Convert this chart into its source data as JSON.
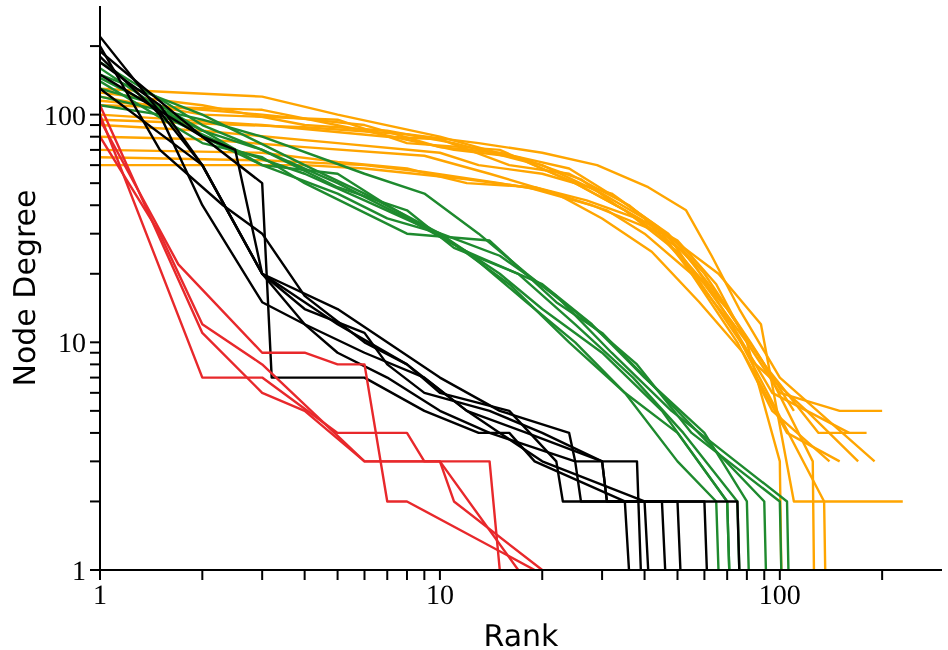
{
  "chart_data": {
    "type": "line",
    "xlabel": "Rank",
    "ylabel": "Node Degree",
    "log": "xy",
    "xlim": [
      1,
      300
    ],
    "ylim": [
      1,
      300
    ],
    "xticks": [
      1,
      {
        "value": 2,
        "label": null
      },
      {
        "value": 3,
        "label": null
      },
      {
        "value": 4,
        "label": null
      },
      {
        "value": 5,
        "label": null
      },
      {
        "value": 6,
        "label": null
      },
      {
        "value": 7,
        "label": null
      },
      {
        "value": 8,
        "label": null
      },
      {
        "value": 9,
        "label": null
      },
      10,
      {
        "value": 20,
        "label": null
      },
      {
        "value": 30,
        "label": null
      },
      {
        "value": 40,
        "label": null
      },
      {
        "value": 50,
        "label": null
      },
      {
        "value": 60,
        "label": null
      },
      {
        "value": 70,
        "label": null
      },
      {
        "value": 80,
        "label": null
      },
      {
        "value": 90,
        "label": null
      },
      100,
      {
        "value": 200,
        "label": null
      }
    ],
    "yticks": [
      1,
      {
        "value": 2,
        "label": null
      },
      {
        "value": 3,
        "label": null
      },
      {
        "value": 4,
        "label": null
      },
      {
        "value": 5,
        "label": null
      },
      {
        "value": 6,
        "label": null
      },
      {
        "value": 7,
        "label": null
      },
      {
        "value": 8,
        "label": null
      },
      {
        "value": 9,
        "label": null
      },
      10,
      {
        "value": 20,
        "label": null
      },
      {
        "value": 30,
        "label": null
      },
      {
        "value": 40,
        "label": null
      },
      {
        "value": 50,
        "label": null
      },
      {
        "value": 60,
        "label": null
      },
      {
        "value": 70,
        "label": null
      },
      {
        "value": 80,
        "label": null
      },
      {
        "value": 90,
        "label": null
      },
      100,
      {
        "value": 200,
        "label": null
      }
    ],
    "series": [
      {
        "color": "#ffa500",
        "x": [
          1,
          3,
          5,
          10,
          20,
          30,
          40,
          60,
          80,
          100,
          150,
          200
        ],
        "values": [
          130,
          120,
          100,
          80,
          60,
          45,
          35,
          18,
          10,
          6,
          5,
          5
        ]
      },
      {
        "color": "#ffa500",
        "x": [
          1,
          2,
          5,
          8,
          15,
          25,
          35,
          50,
          70,
          90,
          130,
          180
        ],
        "values": [
          120,
          100,
          95,
          75,
          70,
          50,
          38,
          25,
          14,
          8,
          4,
          4
        ]
      },
      {
        "color": "#ffa500",
        "x": [
          1,
          4,
          6,
          12,
          18,
          28,
          45,
          55,
          75,
          95,
          140
        ],
        "values": [
          60,
          60,
          58,
          52,
          48,
          40,
          30,
          20,
          10,
          5,
          3
        ]
      },
      {
        "color": "#ffa500",
        "x": [
          1,
          3,
          7,
          10,
          16,
          24,
          36,
          48,
          62,
          85,
          120,
          170
        ],
        "values": [
          100,
          90,
          80,
          78,
          60,
          55,
          40,
          28,
          16,
          8,
          5,
          3
        ]
      },
      {
        "color": "#ffa500",
        "x": [
          1,
          2,
          4,
          9,
          14,
          22,
          30,
          42,
          58,
          78,
          105,
          150
        ],
        "values": [
          80,
          78,
          72,
          66,
          55,
          45,
          35,
          25,
          15,
          9,
          4,
          3
        ]
      },
      {
        "color": "#ffa500",
        "x": [
          1,
          3,
          6,
          11,
          17,
          26,
          33,
          46,
          66,
          88,
          110,
          230
        ],
        "values": [
          110,
          105,
          85,
          70,
          65,
          52,
          40,
          30,
          20,
          12,
          2,
          2
        ]
      },
      {
        "color": "#ffa500",
        "x": [
          1,
          2,
          5,
          10,
          13,
          20,
          32,
          44,
          56,
          70,
          95,
          160
        ],
        "values": [
          90,
          85,
          75,
          68,
          60,
          55,
          45,
          32,
          22,
          13,
          6,
          4
        ]
      },
      {
        "color": "#ffa500",
        "x": [
          1,
          3,
          5,
          8,
          12,
          19,
          27,
          38,
          52,
          68,
          90,
          125,
          126
        ],
        "values": [
          70,
          68,
          62,
          58,
          50,
          48,
          42,
          35,
          25,
          15,
          8,
          3,
          1
        ]
      },
      {
        "color": "#ffa500",
        "x": [
          1,
          2,
          4,
          7,
          11,
          18,
          25,
          35,
          50,
          65,
          80,
          100,
          101
        ],
        "values": [
          125,
          110,
          90,
          85,
          75,
          62,
          50,
          38,
          28,
          18,
          10,
          3,
          1
        ]
      },
      {
        "color": "#ffa500",
        "x": [
          1,
          3,
          6,
          9,
          15,
          21,
          31,
          40,
          55,
          72,
          92,
          135,
          136
        ],
        "values": [
          65,
          63,
          60,
          56,
          50,
          46,
          38,
          30,
          20,
          12,
          6,
          2,
          1
        ]
      },
      {
        "color": "#ffa500",
        "x": [
          1,
          2,
          3,
          6,
          10,
          15,
          24,
          34,
          47,
          60,
          82,
          110
        ],
        "values": [
          115,
          105,
          100,
          90,
          72,
          68,
          58,
          42,
          30,
          20,
          10,
          5
        ]
      },
      {
        "color": "#ffa500",
        "x": [
          1,
          4,
          8,
          13,
          20,
          29,
          41,
          53,
          63,
          76,
          100,
          190
        ],
        "values": [
          95,
          88,
          82,
          75,
          68,
          60,
          48,
          38,
          24,
          14,
          7,
          3
        ]
      },
      {
        "color": "#1e8a2e",
        "x": [
          1,
          2,
          3,
          5,
          8,
          12,
          18,
          25,
          35,
          50,
          65,
          66
        ],
        "values": [
          170,
          90,
          70,
          50,
          35,
          25,
          15,
          10,
          6,
          3,
          2,
          1
        ]
      },
      {
        "color": "#1e8a2e",
        "x": [
          1,
          2,
          4,
          6,
          10,
          15,
          20,
          30,
          45,
          70,
          71
        ],
        "values": [
          150,
          100,
          60,
          45,
          30,
          20,
          14,
          9,
          5,
          2,
          1
        ]
      },
      {
        "color": "#1e8a2e",
        "x": [
          1,
          1.5,
          3,
          5,
          7,
          12,
          20,
          28,
          40,
          60,
          80,
          81
        ],
        "values": [
          130,
          110,
          60,
          55,
          40,
          25,
          18,
          12,
          7,
          4,
          2,
          1
        ]
      },
      {
        "color": "#1e8a2e",
        "x": [
          1,
          2,
          3,
          4,
          8,
          14,
          22,
          30,
          50,
          90,
          91
        ],
        "values": [
          140,
          75,
          65,
          50,
          30,
          28,
          15,
          11,
          5,
          2,
          1
        ]
      },
      {
        "color": "#1e8a2e",
        "x": [
          1,
          2,
          3,
          6,
          9,
          13,
          18,
          26,
          38,
          55,
          100,
          101
        ],
        "values": [
          120,
          95,
          80,
          55,
          45,
          30,
          20,
          13,
          8,
          4,
          2,
          1
        ]
      },
      {
        "color": "#1e8a2e",
        "x": [
          1,
          2,
          3,
          5,
          7,
          10,
          16,
          24,
          35,
          50,
          70,
          71
        ],
        "values": [
          160,
          80,
          60,
          45,
          35,
          30,
          18,
          10,
          6,
          4,
          2,
          1
        ]
      },
      {
        "color": "#1e8a2e",
        "x": [
          1,
          1.5,
          2.5,
          4,
          6,
          9,
          15,
          22,
          32,
          48,
          105,
          106
        ],
        "values": [
          110,
          100,
          70,
          55,
          42,
          32,
          24,
          16,
          9,
          5,
          2,
          1
        ]
      },
      {
        "color": "#1e8a2e",
        "x": [
          1,
          2,
          3,
          5,
          8,
          11,
          17,
          25,
          37,
          52,
          75,
          76
        ],
        "values": [
          145,
          85,
          70,
          48,
          38,
          26,
          20,
          12,
          7,
          4,
          2,
          1
        ]
      },
      {
        "color": "#000000",
        "x": [
          1,
          2,
          3,
          4,
          6,
          9,
          12,
          15,
          20,
          40,
          41
        ],
        "values": [
          220,
          60,
          20,
          12,
          9,
          7,
          5,
          4,
          3,
          2,
          1
        ]
      },
      {
        "color": "#000000",
        "x": [
          1,
          1.5,
          2,
          3,
          4,
          5,
          7,
          10,
          14,
          25,
          26,
          50,
          51
        ],
        "values": [
          180,
          100,
          40,
          15,
          12,
          9,
          7,
          5,
          4,
          3,
          2,
          2,
          1
        ]
      },
      {
        "color": "#000000",
        "x": [
          1,
          2,
          2.5,
          3,
          5,
          8,
          12,
          18,
          30,
          31,
          60,
          61
        ],
        "values": [
          150,
          80,
          70,
          20,
          12,
          8,
          5,
          4,
          3,
          2,
          2,
          1
        ]
      },
      {
        "color": "#000000",
        "x": [
          1,
          1.5,
          2.3,
          3,
          4,
          6,
          8,
          10,
          16,
          22,
          23,
          45,
          46
        ],
        "values": [
          200,
          70,
          40,
          30,
          16,
          10,
          8,
          6,
          5,
          3,
          2,
          2,
          1
        ]
      },
      {
        "color": "#000000",
        "x": [
          1,
          2,
          3,
          4,
          6,
          7,
          9,
          14,
          20,
          30,
          31,
          75,
          76
        ],
        "values": [
          130,
          60,
          20,
          14,
          11,
          8,
          6,
          5,
          4,
          3,
          2,
          2,
          1
        ]
      },
      {
        "color": "#000000",
        "x": [
          1,
          1.5,
          2,
          3,
          5,
          7,
          10,
          15,
          24,
          25,
          38,
          39
        ],
        "values": [
          170,
          110,
          60,
          20,
          14,
          10,
          7,
          5,
          4,
          3,
          3,
          1
        ]
      },
      {
        "color": "#000000",
        "x": [
          1,
          2,
          3,
          3.2,
          6,
          9,
          13,
          16,
          19,
          35,
          36
        ],
        "values": [
          190,
          80,
          50,
          7,
          7,
          5,
          4,
          4,
          3,
          2,
          1
        ]
      },
      {
        "color": "#e8282b",
        "x": [
          1,
          2,
          3,
          5,
          8,
          9,
          14,
          15
        ],
        "values": [
          100,
          7,
          7,
          4,
          4,
          3,
          3,
          1
        ]
      },
      {
        "color": "#e8282b",
        "x": [
          1,
          2,
          3,
          4,
          6,
          10,
          11,
          20
        ],
        "values": [
          110,
          11,
          6,
          5,
          3,
          3,
          2,
          1
        ]
      },
      {
        "color": "#e8282b",
        "x": [
          1,
          1.7,
          3,
          4,
          5,
          6,
          7,
          8,
          19
        ],
        "values": [
          95,
          22,
          9,
          9,
          8,
          8,
          2,
          2,
          1
        ]
      },
      {
        "color": "#e8282b",
        "x": [
          1,
          1.5,
          2,
          3,
          6,
          10,
          17
        ],
        "values": [
          80,
          30,
          12,
          8,
          3,
          3,
          1
        ]
      }
    ]
  }
}
